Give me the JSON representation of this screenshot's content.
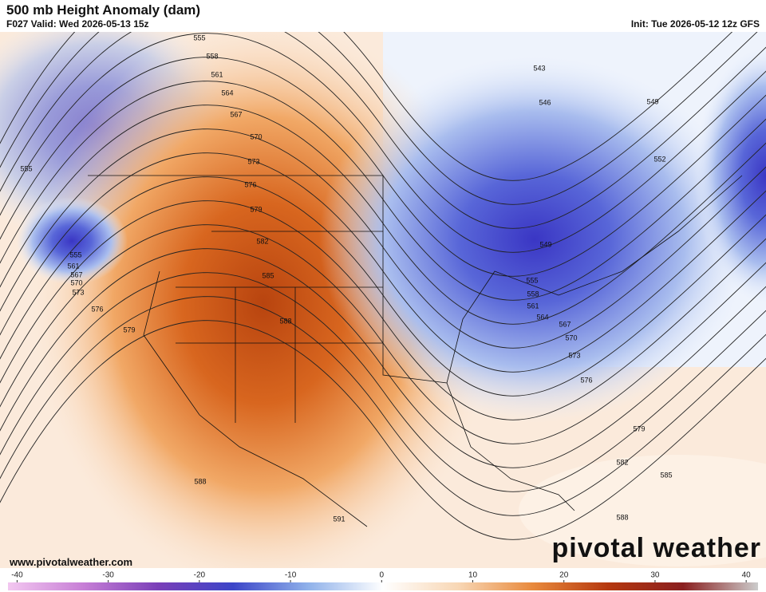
{
  "header": {
    "title": "500 mb Height Anomaly (dam)",
    "valid": "F027 Valid: Wed 2026-05-13 15z",
    "init": "Init: Tue 2026-05-12 12z GFS"
  },
  "contour_labels": [
    555,
    558,
    561,
    564,
    567,
    570,
    573,
    576,
    579,
    582,
    585,
    588,
    591,
    588,
    579,
    576,
    573,
    570,
    567,
    561,
    555,
    555,
    543,
    546,
    549,
    552,
    549,
    555,
    558,
    561,
    564,
    567,
    570,
    573,
    576,
    579,
    582,
    585,
    588
  ],
  "footer": {
    "url": "www.pivotalweather.com",
    "logo": "pivotal weather"
  },
  "colorbar": {
    "range": [
      -41,
      41.3
    ],
    "ticks": [
      -40,
      -30,
      -20,
      -10,
      0,
      10,
      20,
      30,
      40
    ]
  }
}
